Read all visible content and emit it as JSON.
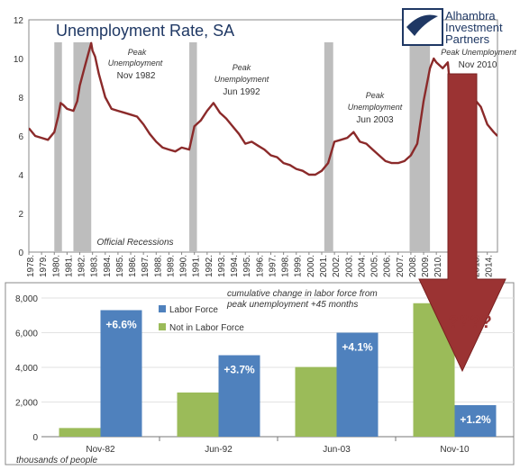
{
  "top_chart": {
    "title": "Unemployment Rate, SA",
    "logo": {
      "line1": "Alhambra",
      "line2": "Investment",
      "line3": "Partners"
    },
    "recession_label": "Official Recessions",
    "colors": {
      "line": "#8b2a2a",
      "recession": "#bdbdbd",
      "arrow": "#9b3333"
    },
    "annotations": [
      {
        "line1": "Peak",
        "line2": "Unemployment",
        "line3": "Nov 1982"
      },
      {
        "line1": "Peak",
        "line2": "Unemployment",
        "line3": "Jun 1992"
      },
      {
        "line1": "Peak",
        "line2": "Unemployment",
        "line3": "Jun 2003"
      },
      {
        "line1": "Peak Unemployment",
        "line2": "Nov 2010"
      }
    ],
    "chart_data": {
      "type": "line",
      "title": "Unemployment Rate, SA",
      "ylim": [
        0,
        12
      ],
      "yticks": [
        0,
        2,
        4,
        6,
        8,
        10,
        12
      ],
      "xlim": [
        1978,
        2014.8
      ],
      "xticks": [
        "1978",
        "1979",
        "1980",
        "1981",
        "1982",
        "1983",
        "1984",
        "1985",
        "1986",
        "1987",
        "1988",
        "1989",
        "1990",
        "1991",
        "1992",
        "1993",
        "1994",
        "1995",
        "1996",
        "1997",
        "1998",
        "1999",
        "2000",
        "2001",
        "2002",
        "2003",
        "2004",
        "2005",
        "2006",
        "2007",
        "2008",
        "2009",
        "2010",
        "2011",
        "2012",
        "2013",
        "2014"
      ],
      "recessions": [
        [
          1980.0,
          1980.6
        ],
        [
          1981.5,
          1982.9
        ],
        [
          1990.6,
          1991.2
        ],
        [
          2001.2,
          2001.9
        ],
        [
          2007.9,
          2009.5
        ]
      ],
      "series": [
        {
          "x": [
            1978.0,
            1978.5,
            1979.0,
            1979.5,
            1980.0,
            1980.3,
            1980.5,
            1980.7,
            1981.0,
            1981.5,
            1981.8,
            1982.0,
            1982.4,
            1982.9,
            1983.0,
            1983.2,
            1983.5,
            1984.0,
            1984.5,
            1985.0,
            1985.5,
            1986.0,
            1986.5,
            1987.0,
            1987.5,
            1988.0,
            1988.5,
            1989.0,
            1989.5,
            1990.0,
            1990.6,
            1991.0,
            1991.5,
            1992.0,
            1992.5,
            1993.0,
            1993.5,
            1994.0,
            1994.5,
            1995.0,
            1995.5,
            1996.0,
            1996.5,
            1997.0,
            1997.5,
            1998.0,
            1998.5,
            1999.0,
            1999.5,
            2000.0,
            2000.5,
            2001.0,
            2001.5,
            2002.0,
            2002.5,
            2003.0,
            2003.5,
            2004.0,
            2004.5,
            2005.0,
            2005.5,
            2006.0,
            2006.5,
            2007.0,
            2007.5,
            2008.0,
            2008.5,
            2009.0,
            2009.5,
            2009.8,
            2010.0,
            2010.5,
            2010.9,
            2011.0,
            2011.5,
            2012.0,
            2012.5,
            2013.0,
            2013.5,
            2014.0,
            2014.5,
            2014.8
          ],
          "y": [
            6.4,
            6.0,
            5.9,
            5.8,
            6.2,
            7.0,
            7.7,
            7.6,
            7.4,
            7.3,
            7.8,
            8.6,
            9.6,
            10.8,
            10.4,
            10.1,
            9.2,
            8.0,
            7.4,
            7.3,
            7.2,
            7.1,
            7.0,
            6.6,
            6.1,
            5.7,
            5.4,
            5.3,
            5.2,
            5.4,
            5.3,
            6.5,
            6.8,
            7.3,
            7.7,
            7.2,
            6.9,
            6.5,
            6.1,
            5.6,
            5.7,
            5.5,
            5.3,
            5.0,
            4.9,
            4.6,
            4.5,
            4.3,
            4.2,
            4.0,
            4.0,
            4.2,
            4.6,
            5.7,
            5.8,
            5.9,
            6.2,
            5.7,
            5.6,
            5.3,
            5.0,
            4.7,
            4.6,
            4.6,
            4.7,
            5.0,
            5.6,
            7.8,
            9.5,
            10.0,
            9.8,
            9.5,
            9.8,
            9.1,
            9.1,
            8.3,
            8.2,
            7.9,
            7.5,
            6.6,
            6.2,
            6.0
          ]
        }
      ]
    }
  },
  "bottom_chart": {
    "annotation_line1": "cumulative change in labor force from",
    "annotation_line2": "peak unemployment +45 months",
    "question_marks": "????",
    "units_note": "thousands of people",
    "colors": {
      "labor_force": "#4f81bd",
      "not_in_labor_force": "#9bbb59",
      "question": "#9b3333"
    },
    "chart_data": {
      "type": "bar",
      "categories": [
        "Nov-82",
        "Jun-92",
        "Jun-03",
        "Nov-10"
      ],
      "ylim": [
        0,
        8000
      ],
      "yticks": [
        "0",
        "2,000",
        "4,000",
        "6,000",
        "8,000"
      ],
      "legend_position": "top-left",
      "series": [
        {
          "name": "Not in Labor Force",
          "values": [
            500,
            2550,
            4020,
            7700
          ]
        },
        {
          "name": "Labor Force",
          "values": [
            7300,
            4700,
            6000,
            1820
          ]
        }
      ],
      "data_labels": [
        "+6.6%",
        "+3.7%",
        "+4.1%",
        "+1.2%"
      ]
    }
  }
}
